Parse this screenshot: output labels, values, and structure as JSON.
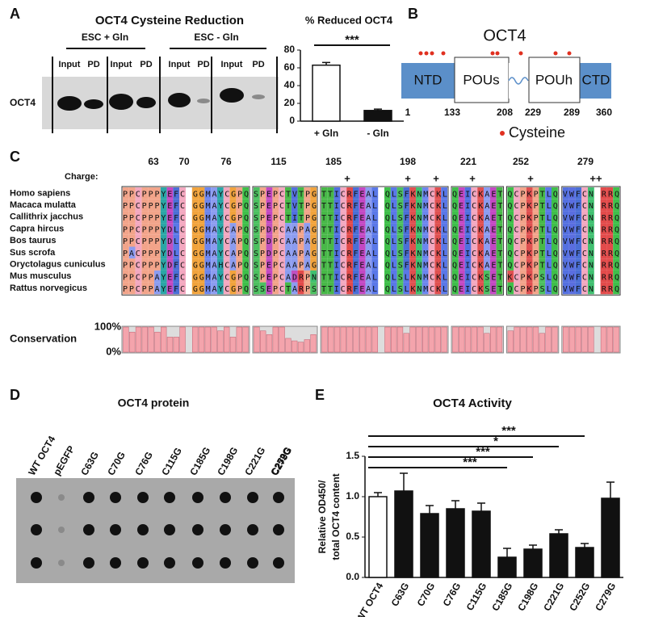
{
  "panel_a": {
    "label": "A",
    "title": "OCT4 Cysteine Reduction",
    "groups": [
      "ESC + Gln",
      "ESC - Gln"
    ],
    "lanes": [
      "Input",
      "PD",
      "Input",
      "PD",
      "Input",
      "PD",
      "Input",
      "PD"
    ],
    "blot_label": "OCT4"
  },
  "panel_b": {
    "label": "B",
    "title": "OCT4",
    "domains": [
      "NTD",
      "POUs",
      "POUh",
      "CTD"
    ],
    "positions": [
      1,
      133,
      208,
      229,
      289,
      360
    ],
    "legend": "Cysteine"
  },
  "panel_c": {
    "label": "C",
    "positions": [
      63,
      70,
      76,
      115,
      185,
      198,
      221,
      252,
      279
    ],
    "charge_label": "Charge:",
    "charges": [
      "+",
      "+",
      "+",
      "+",
      "+",
      "++"
    ],
    "species": [
      "Homo sapiens",
      "Macaca mulatta",
      "Callithrix jacchus",
      "Capra hircus",
      "Bos taurus",
      "Sus scrofa",
      "Oryctolagus cuniculus",
      "Mus musculus",
      "Rattus norvegicus"
    ],
    "sequences": [
      [
        "PPCPPPYEFC GGMAYCGPQ",
        "SPEPCTVTPG",
        "TTICRFEAL QLSFKNMCKL",
        "QEICKAET",
        "QCPKPTLQ",
        "VWFCN RRQ"
      ],
      [
        "PPCPPPYEFC GGMAYCGPQ",
        "SPEPCTVTPG",
        "TTICRFEAL QLSFKNMCKL",
        "QEICKAET",
        "QCPKPTLQ",
        "VWFCN RRQ"
      ],
      [
        "PPCPPPYEFC GGMAYCGPQ",
        "SPEPCTITPG",
        "TTICRFEAL QLSFKNMCKL",
        "QEICKAET",
        "QCPKPTLQ",
        "VWFCN RRQ"
      ],
      [
        "PPCPPPYDLC GGMAYCAPQ",
        "SPDPCAAPAG",
        "TTICRFEAL QLSFKNMCKL",
        "QEICKAET",
        "QCPKPTLQ",
        "VWFCN RRQ"
      ],
      [
        "PPCPPPYDLC GGMAYCAPQ",
        "SPDPCAAPAG",
        "TTICRFEAL QLSFKNMCKL",
        "QEICKAET",
        "QCPKPTLQ",
        "VWFCN RRQ"
      ],
      [
        "PACPPPYDLC GGMAYCAPQ",
        "SPDPCAAPAG",
        "TTICRFEAL QLSFKNMCKL",
        "QEICKAET",
        "QCPKPTLQ",
        "VWFCN RRQ"
      ],
      [
        "PPCPPPYDFC GGMAHCAPQ",
        "SPEPCAAPAG",
        "TTICRFEAL QLSFKNMCKL",
        "QEICKAET",
        "QCPKPTLQ",
        "VWFCN RRQ"
      ],
      [
        "PPCPPAYEFC GGMAYCGPQ",
        "SPEPCADRPN",
        "TTICRFEAL QLSLKNMCKL",
        "QEICKSET",
        "KCPKPSLQ",
        "VWFCN RRQ"
      ],
      [
        "PPCPPAYEFC GGMAYCGPQ",
        "SSEPCTARPS",
        "TTICRFEAL QLSLKNMCKL",
        "QEICKSET",
        "QCPKPSLQ",
        "VWFCN RRQ"
      ]
    ],
    "conservation_label": "Conservation",
    "conservation_ticks": [
      {
        "value": 100,
        "label": "100%"
      },
      {
        "value": 0,
        "label": "0%"
      }
    ],
    "conservation": [
      [
        100,
        80,
        100,
        100,
        100,
        80,
        100,
        60,
        60,
        100,
        null,
        100,
        100,
        100,
        100,
        85,
        100,
        60,
        100,
        100
      ],
      [
        100,
        85,
        70,
        100,
        100,
        55,
        45,
        40,
        50,
        70
      ],
      [
        100,
        100,
        100,
        100,
        100,
        100,
        100,
        100,
        100,
        null,
        100,
        100,
        100,
        75,
        100,
        100,
        100,
        100,
        100,
        100
      ],
      [
        100,
        100,
        100,
        100,
        100,
        75,
        100,
        100
      ],
      [
        85,
        100,
        100,
        100,
        100,
        75,
        100,
        100
      ],
      [
        100,
        100,
        100,
        100,
        100,
        null,
        100,
        100,
        100
      ]
    ]
  },
  "panel_d": {
    "label": "D",
    "title": "OCT4 protein",
    "lanes": [
      "WT OCT4",
      "pEGFP",
      "C63G",
      "C70G",
      "C76G",
      "C115G",
      "C185G",
      "C198G",
      "C221G",
      "C252G",
      "C279G"
    ]
  },
  "panel_e": {
    "label": "E"
  },
  "chart_data": [
    {
      "type": "bar",
      "title": "% Reduced OCT4",
      "categories": [
        "+ Gln",
        "- Gln"
      ],
      "values": [
        63,
        12
      ],
      "errors": [
        3,
        1.5
      ],
      "colors": [
        "#ffffff",
        "#111111"
      ],
      "ylim": [
        0,
        80
      ],
      "yticks": [
        0,
        20,
        40,
        60,
        80
      ],
      "significance": [
        {
          "from": "+ Gln",
          "to": "- Gln",
          "label": "***"
        }
      ]
    },
    {
      "type": "bar",
      "title": "OCT4 Activity",
      "ylabel": [
        "Relative OD450/",
        "total OCT4 content"
      ],
      "categories": [
        "WT OCT4",
        "C63G",
        "C70G",
        "C76G",
        "C115G",
        "C185G",
        "C198G",
        "C221G",
        "C252G",
        "C279G"
      ],
      "values": [
        1.0,
        1.07,
        0.79,
        0.85,
        0.82,
        0.25,
        0.35,
        0.54,
        0.37,
        0.98
      ],
      "errors": [
        0.05,
        0.22,
        0.1,
        0.1,
        0.1,
        0.11,
        0.05,
        0.05,
        0.05,
        0.2
      ],
      "colors": [
        "#ffffff",
        "#111111",
        "#111111",
        "#111111",
        "#111111",
        "#111111",
        "#111111",
        "#111111",
        "#111111",
        "#111111"
      ],
      "ylim": [
        0,
        1.5
      ],
      "yticks": [
        {
          "value": 0,
          "label": "0.0"
        },
        {
          "value": 0.5,
          "label": "0.5"
        },
        {
          "value": 1,
          "label": "1.0"
        },
        {
          "value": 1.5,
          "label": "1.5"
        }
      ],
      "significance": [
        {
          "from": "WT OCT4",
          "to": "C252G",
          "label": "***"
        },
        {
          "from": "WT OCT4",
          "to": "C221G",
          "label": "*"
        },
        {
          "from": "WT OCT4",
          "to": "C198G",
          "label": "***"
        },
        {
          "from": "WT OCT4",
          "to": "C185G",
          "label": "***"
        }
      ]
    }
  ]
}
